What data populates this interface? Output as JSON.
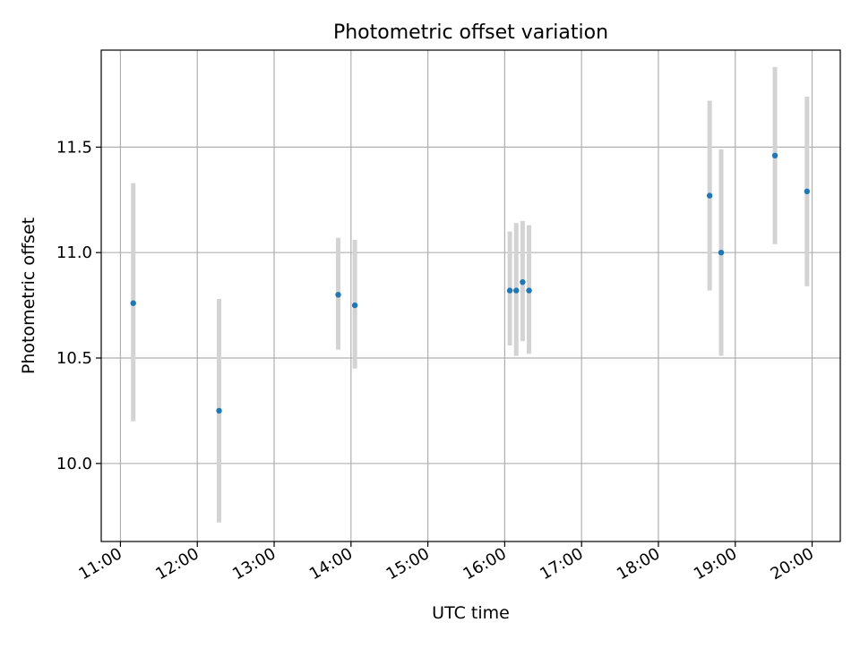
{
  "chart_data": {
    "type": "scatter",
    "title": "Photometric offset variation",
    "xlabel": "UTC time",
    "ylabel": "Photometric offset",
    "x_ticks": [
      "11:00",
      "12:00",
      "13:00",
      "14:00",
      "15:00",
      "16:00",
      "17:00",
      "18:00",
      "19:00",
      "20:00"
    ],
    "y_ticks": [
      "10.0",
      "10.5",
      "11.0",
      "11.5"
    ],
    "y_tick_values": [
      10.0,
      10.5,
      11.0,
      11.5
    ],
    "xlim": [
      "10:45",
      "20:22"
    ],
    "ylim": [
      9.63,
      11.96
    ],
    "grid": true,
    "point_color": "#1f77b4",
    "errorbar_color": "#d3d3d3",
    "series": [
      {
        "x": [
          "11:10",
          "12:17",
          "13:50",
          "14:03",
          "16:04",
          "16:09",
          "16:14",
          "16:19",
          "18:40",
          "18:49",
          "19:31",
          "19:56"
        ],
        "y": [
          10.76,
          10.25,
          10.8,
          10.75,
          10.82,
          10.82,
          10.86,
          10.82,
          11.27,
          11.0,
          11.46,
          11.29
        ],
        "y_err_low": [
          10.2,
          9.72,
          10.54,
          10.45,
          10.56,
          10.51,
          10.58,
          10.52,
          10.82,
          10.51,
          11.04,
          10.84
        ],
        "y_err_high": [
          11.33,
          10.78,
          11.07,
          11.06,
          11.1,
          11.14,
          11.15,
          11.13,
          11.72,
          11.49,
          11.88,
          11.74
        ]
      }
    ]
  }
}
